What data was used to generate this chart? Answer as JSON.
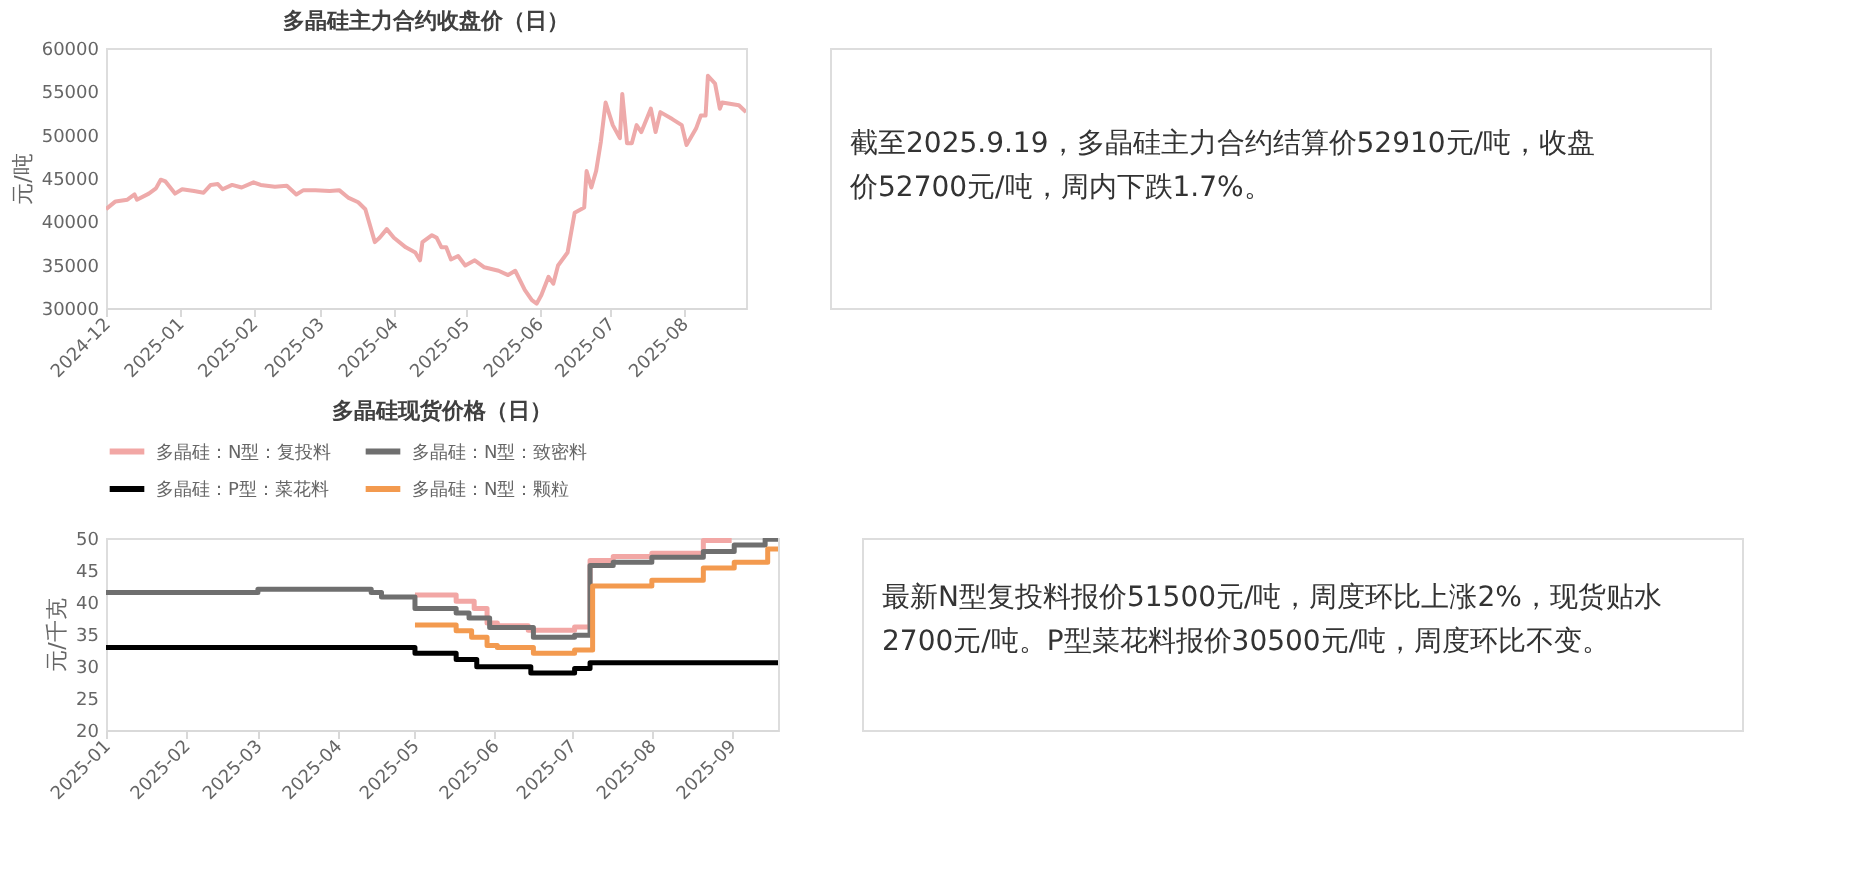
{
  "chart_data": [
    {
      "type": "line",
      "title": "多晶硅主力合约收盘价（日）",
      "ylabel": "元/吨",
      "xlim": [
        "2024-12-01",
        "2025-08-27"
      ],
      "xticks": [
        "2024-12",
        "2025-01",
        "2025-02",
        "2025-03",
        "2025-04",
        "2025-05",
        "2025-06",
        "2025-07",
        "2025-08"
      ],
      "ylim": [
        30000,
        60000
      ],
      "yticks": [
        30000,
        35000,
        40000,
        45000,
        50000,
        55000,
        60000
      ],
      "series": [
        {
          "color": "#eeaaaa",
          "x": [
            "2024-12-01",
            "2024-12-05",
            "2024-12-10",
            "2024-12-13",
            "2024-12-14",
            "2024-12-19",
            "2024-12-22",
            "2024-12-24",
            "2024-12-26",
            "2024-12-30",
            "2025-01-02",
            "2025-01-07",
            "2025-01-11",
            "2025-01-14",
            "2025-01-17",
            "2025-01-19",
            "2025-01-23",
            "2025-01-27",
            "2025-02-01",
            "2025-02-04",
            "2025-02-10",
            "2025-02-15",
            "2025-02-19",
            "2025-02-22",
            "2025-02-27",
            "2025-03-05",
            "2025-03-09",
            "2025-03-13",
            "2025-03-17",
            "2025-03-20",
            "2025-03-24",
            "2025-03-26",
            "2025-03-29",
            "2025-04-01",
            "2025-04-06",
            "2025-04-10",
            "2025-04-12",
            "2025-04-13",
            "2025-04-17",
            "2025-04-19",
            "2025-04-21",
            "2025-04-23",
            "2025-04-25",
            "2025-04-28",
            "2025-05-01",
            "2025-05-05",
            "2025-05-09",
            "2025-05-15",
            "2025-05-19",
            "2025-05-22",
            "2025-05-26",
            "2025-05-29",
            "2025-05-31",
            "2025-06-02",
            "2025-06-05",
            "2025-06-07",
            "2025-06-09",
            "2025-06-13",
            "2025-06-16",
            "2025-06-20",
            "2025-06-21",
            "2025-06-23",
            "2025-06-25",
            "2025-06-27",
            "2025-06-29",
            "2025-07-02",
            "2025-07-05",
            "2025-07-06",
            "2025-07-08",
            "2025-07-10",
            "2025-07-12",
            "2025-07-14",
            "2025-07-18",
            "2025-07-20",
            "2025-07-22",
            "2025-07-27",
            "2025-07-31",
            "2025-08-02",
            "2025-08-06",
            "2025-08-08",
            "2025-08-10",
            "2025-08-11",
            "2025-08-14",
            "2025-08-16",
            "2025-08-17",
            "2025-08-24",
            "2025-08-27"
          ],
          "values": [
            41400,
            42300,
            42500,
            43100,
            42500,
            43200,
            43800,
            44800,
            44600,
            43200,
            43700,
            43500,
            43300,
            44200,
            44300,
            43700,
            44200,
            43900,
            44500,
            44200,
            44000,
            44100,
            43100,
            43600,
            43600,
            43500,
            43600,
            42700,
            42200,
            41400,
            37600,
            38100,
            39100,
            38100,
            37000,
            36400,
            35500,
            37600,
            38400,
            38100,
            37000,
            37000,
            35600,
            36000,
            34900,
            35500,
            34700,
            34300,
            33800,
            34300,
            32100,
            30900,
            30500,
            31500,
            33600,
            32800,
            34900,
            36400,
            41000,
            41600,
            45800,
            43900,
            45800,
            49200,
            53700,
            51100,
            49600,
            54700,
            49000,
            49000,
            51100,
            50300,
            53000,
            50300,
            52600,
            51800,
            51100,
            48800,
            50700,
            52200,
            52200,
            56800,
            55900,
            53000,
            53700,
            53400,
            52600
          ]
        }
      ]
    },
    {
      "type": "other",
      "annotations": [
        "截至2025.9.19，多晶硅主力合约结算价52910元/吨，收盘价52700元/吨，周内下跌1.7%。"
      ]
    },
    {
      "type": "step",
      "title": "多晶硅现货价格（日）",
      "ylabel": "元/千克",
      "xlim": [
        "2025-01-01",
        "2025-09-19"
      ],
      "xticks": [
        "2025-01",
        "2025-02",
        "2025-03",
        "2025-04",
        "2025-05",
        "2025-06",
        "2025-07",
        "2025-08",
        "2025-09"
      ],
      "ylim": [
        20,
        50
      ],
      "yticks": [
        20,
        25,
        30,
        35,
        40,
        45,
        50
      ],
      "legend": "top",
      "series": [
        {
          "name": "多晶硅：N型：复投料",
          "color": "#f2a7a5",
          "x": [
            "2025-05-01",
            "2025-05-17",
            "2025-05-24",
            "2025-05-29",
            "2025-06-02",
            "2025-06-14",
            "2025-07-02",
            "2025-07-08",
            "2025-07-17",
            "2025-08-01",
            "2025-08-21",
            "2025-09-01"
          ],
          "values": [
            41.1,
            40.1,
            39,
            36.7,
            36.3,
            35.6,
            36.1,
            46.5,
            47.1,
            47.6,
            49.6,
            49.6
          ]
        },
        {
          "name": "多晶硅：N型：致密料",
          "color": "#6f6f6f",
          "x": [
            "2025-01-01",
            "2025-03-01",
            "2025-04-14",
            "2025-04-18",
            "2025-05-01",
            "2025-05-17",
            "2025-05-22",
            "2025-05-30",
            "2025-06-16",
            "2025-07-02",
            "2025-07-08",
            "2025-07-17",
            "2025-08-01",
            "2025-08-21",
            "2025-09-02",
            "2025-09-14",
            "2025-09-19"
          ],
          "values": [
            41.5,
            42,
            41.5,
            40.8,
            39,
            38.3,
            37.5,
            36,
            34.5,
            34.8,
            45.7,
            46.2,
            47,
            47.9,
            48.9,
            49.8,
            49.8
          ]
        },
        {
          "name": "多晶硅：P型：菜花料",
          "color": "#000000",
          "x": [
            "2025-01-01",
            "2025-05-01",
            "2025-05-17",
            "2025-05-25",
            "2025-06-15",
            "2025-07-02",
            "2025-07-08",
            "2025-09-19"
          ],
          "values": [
            32.9,
            32,
            31,
            29.9,
            28.9,
            29.6,
            30.5,
            30.5
          ]
        },
        {
          "name": "多晶硅：N型：颗粒",
          "color": "#f39a4f",
          "x": [
            "2025-05-01",
            "2025-05-17",
            "2025-05-23",
            "2025-05-29",
            "2025-06-02",
            "2025-06-16",
            "2025-07-02",
            "2025-07-09",
            "2025-08-01",
            "2025-08-21",
            "2025-09-02",
            "2025-09-15",
            "2025-09-19"
          ],
          "values": [
            36.4,
            35.5,
            34.5,
            33.2,
            32.9,
            32,
            32.5,
            42.5,
            43.4,
            45.3,
            46.2,
            48.3,
            48.3
          ]
        }
      ]
    },
    {
      "type": "other",
      "annotations": [
        "最新N型复投料报价51500元/吨，周度环比上涨2%，现货贴水2700元/吨。P型菜花料报价30500元/吨，周度环比不变。"
      ]
    }
  ]
}
